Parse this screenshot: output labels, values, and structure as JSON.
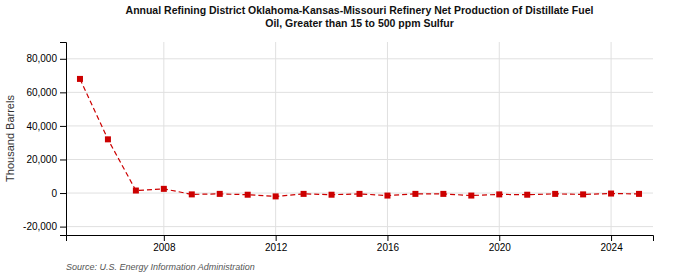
{
  "chart_data": {
    "type": "line",
    "title": "Annual Refining District Oklahoma-Kansas-Missouri Refinery Net Production of Distillate Fuel\nOil, Greater than 15 to 500 ppm Sulfur",
    "ylabel": "Thousand Barrels",
    "source": "Source: U.S. Energy Information Administration",
    "x": [
      2005,
      2006,
      2007,
      2008,
      2009,
      2010,
      2011,
      2012,
      2013,
      2014,
      2015,
      2016,
      2017,
      2018,
      2019,
      2020,
      2021,
      2022,
      2023,
      2024,
      2025
    ],
    "values": [
      68000,
      32000,
      1500,
      2500,
      -800,
      -500,
      -1000,
      -2000,
      -500,
      -1000,
      -500,
      -1500,
      -500,
      -500,
      -1500,
      -800,
      -1000,
      -500,
      -800,
      -300,
      -500
    ],
    "color": "#cc0000",
    "marker": "square",
    "line_style": "dashed",
    "xlim": [
      2004.5,
      2025.5
    ],
    "ylim": [
      -25000,
      90000
    ],
    "xticks": [
      2008,
      2012,
      2016,
      2020,
      2024
    ],
    "yticks": [
      {
        "value": -20000,
        "label": "-20,000"
      },
      0,
      {
        "value": 20000,
        "label": "20,000"
      },
      {
        "value": 40000,
        "label": "40,000"
      },
      {
        "value": 60000,
        "label": "60,000"
      },
      {
        "value": 80000,
        "label": "80,000"
      }
    ],
    "grid": true
  }
}
